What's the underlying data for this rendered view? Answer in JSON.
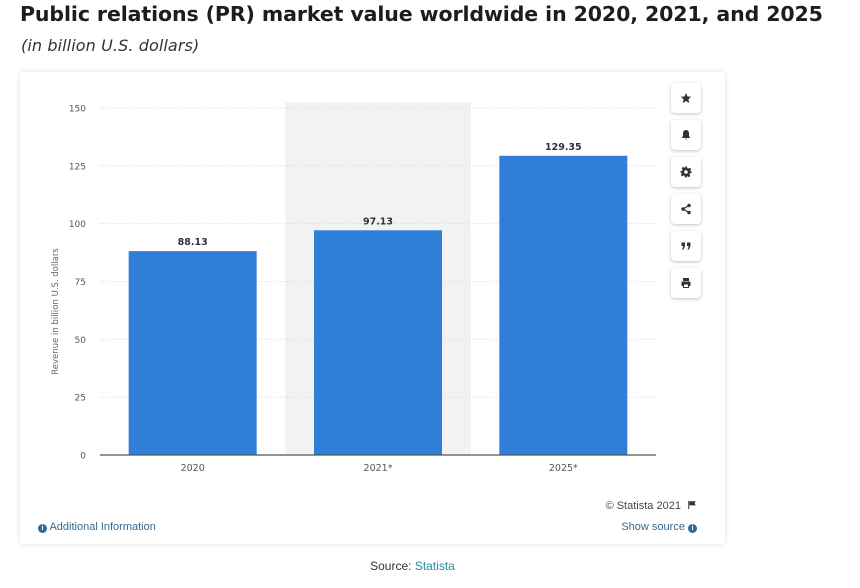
{
  "header": {
    "title": "Public relations (PR) market value worldwide in 2020, 2021, and 2025",
    "subtitle": "(in billion U.S. dollars)"
  },
  "toolbar": {
    "icons": [
      "star-icon",
      "bell-icon",
      "gear-icon",
      "share-icon",
      "quote-icon",
      "print-icon"
    ]
  },
  "footer": {
    "copyright": "© Statista 2021",
    "additional_info": "Additional Information",
    "show_source": "Show source",
    "source_prefix": "Source: ",
    "source_link": "Statista"
  },
  "colors": {
    "bar": "#2f7ed8",
    "highlight_band": "#f2f2f2",
    "link": "#37698f"
  },
  "chart_data": {
    "type": "bar",
    "categories": [
      "2020",
      "2021*",
      "2025*"
    ],
    "values": [
      88.13,
      97.13,
      129.35
    ],
    "value_labels": [
      "88.13",
      "97.13",
      "129.35"
    ],
    "ylabel": "Revenue in billion U.S. dollars",
    "xlabel": "",
    "ylim": [
      0,
      150
    ],
    "yticks": [
      0,
      25,
      50,
      75,
      100,
      125,
      150
    ],
    "highlighted_category": "2021*",
    "grid": true,
    "legend": "none"
  }
}
